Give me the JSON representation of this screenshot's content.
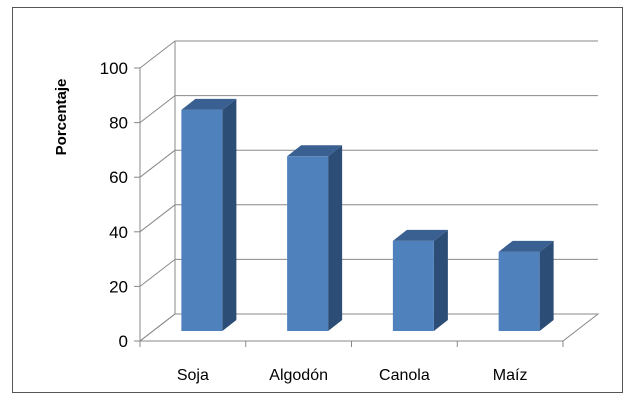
{
  "chart_data": {
    "type": "bar",
    "categories": [
      "Soja",
      "Algodón",
      "Canola",
      "Maíz"
    ],
    "values": [
      81,
      64,
      33,
      29
    ],
    "title": "",
    "xlabel": "",
    "ylabel": "Porcentaje",
    "ylim": [
      0,
      100
    ],
    "yticks": [
      0,
      20,
      40,
      60,
      80,
      100
    ],
    "grid": true,
    "legend": "none",
    "colors": {
      "bar_front": "#4f81bd",
      "bar_side": "#2c4d75",
      "bar_top": "#3a6091",
      "grid": "#888888",
      "axis": "#888888"
    }
  }
}
